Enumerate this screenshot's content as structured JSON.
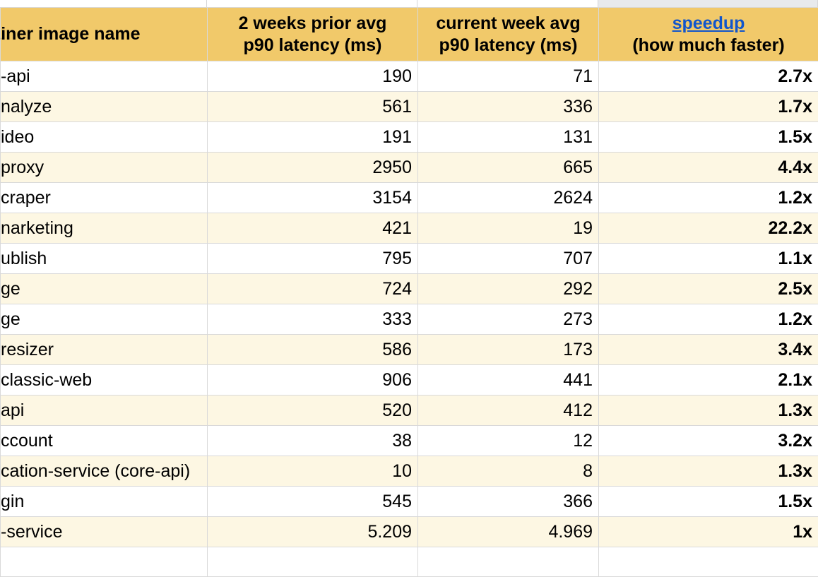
{
  "headers": {
    "name": "tainer image name",
    "prior_line1": "2 weeks prior avg",
    "prior_line2": "p90 latency (ms)",
    "current_line1": "current week avg",
    "current_line2": "p90 latency  (ms)",
    "speedup_link": "speedup",
    "speedup_line2": "(how much faster)"
  },
  "rows": [
    {
      "name": "-api",
      "prior": "190",
      "current": "71",
      "speedup": "2.7x"
    },
    {
      "name": "nalyze",
      "prior": "561",
      "current": "336",
      "speedup": "1.7x"
    },
    {
      "name": "ideo",
      "prior": "191",
      "current": "131",
      "speedup": "1.5x"
    },
    {
      "name": "proxy",
      "prior": "2950",
      "current": "665",
      "speedup": "4.4x"
    },
    {
      "name": "craper",
      "prior": "3154",
      "current": "2624",
      "speedup": "1.2x"
    },
    {
      "name": "narketing",
      "prior": "421",
      "current": "19",
      "speedup": "22.2x"
    },
    {
      "name": "ublish",
      "prior": "795",
      "current": "707",
      "speedup": "1.1x"
    },
    {
      "name": "ge",
      "prior": "724",
      "current": "292",
      "speedup": "2.5x"
    },
    {
      "name": "ge",
      "prior": "333",
      "current": "273",
      "speedup": "1.2x"
    },
    {
      "name": "resizer",
      "prior": "586",
      "current": "173",
      "speedup": "3.4x"
    },
    {
      "name": "classic-web",
      "prior": "906",
      "current": "441",
      "speedup": "2.1x"
    },
    {
      "name": "api",
      "prior": "520",
      "current": "412",
      "speedup": "1.3x"
    },
    {
      "name": "ccount",
      "prior": "38",
      "current": "12",
      "speedup": "3.2x"
    },
    {
      "name": "cation-service (core-api)",
      "prior": "10",
      "current": "8",
      "speedup": "1.3x"
    },
    {
      "name": "gin",
      "prior": "545",
      "current": "366",
      "speedup": "1.5x"
    },
    {
      "name": "-service",
      "prior": "5.209",
      "current": "4.969",
      "speedup": "1x"
    }
  ],
  "colors": {
    "header_bg": "#f1c96a",
    "band_bg": "#fdf7e3",
    "link": "#1155cc",
    "gridline": "#d9d9d9"
  }
}
